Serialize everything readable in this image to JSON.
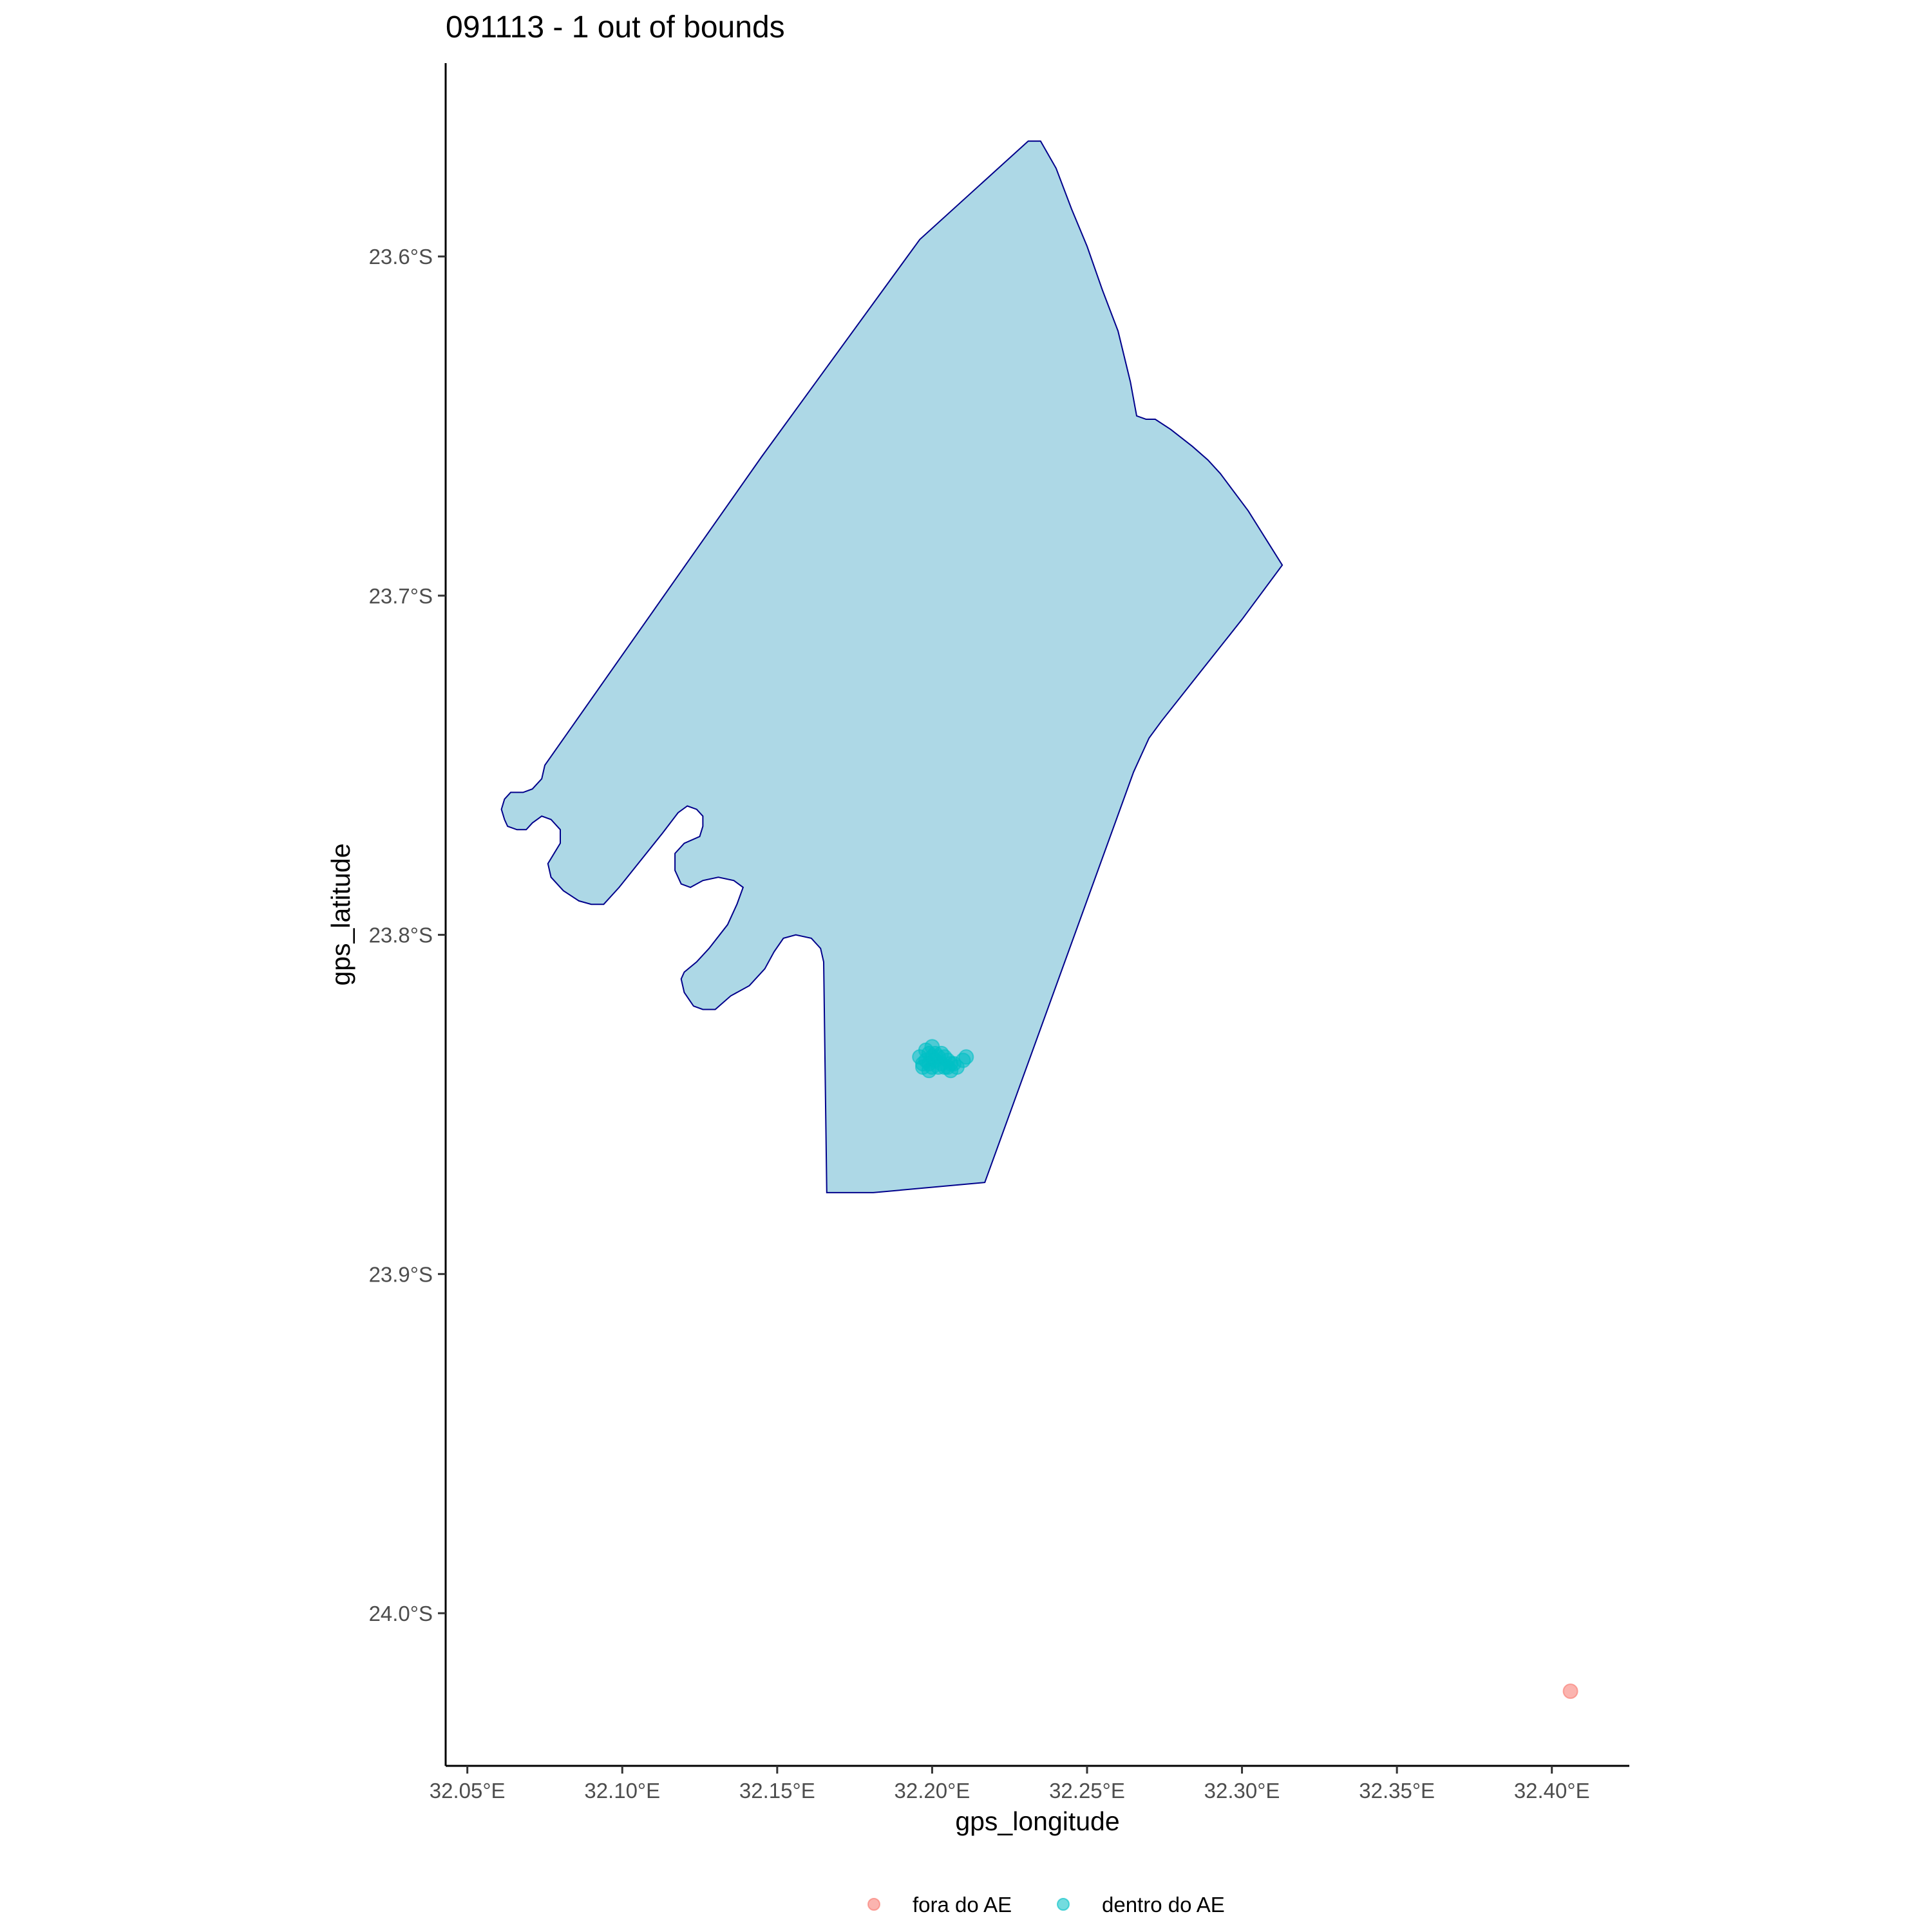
{
  "chart_data": {
    "type": "scatter",
    "title": "091113 - 1 out of bounds",
    "xlabel": "gps_longitude",
    "ylabel": "gps_latitude",
    "xlim": [
      32.043,
      32.425
    ],
    "ylim": [
      -24.045,
      -23.543
    ],
    "x_ticks": [
      {
        "value": 32.05,
        "label": "32.05°E"
      },
      {
        "value": 32.1,
        "label": "32.10°E"
      },
      {
        "value": 32.15,
        "label": "32.15°E"
      },
      {
        "value": 32.2,
        "label": "32.20°E"
      },
      {
        "value": 32.25,
        "label": "32.25°E"
      },
      {
        "value": 32.3,
        "label": "32.30°E"
      },
      {
        "value": 32.35,
        "label": "32.35°E"
      },
      {
        "value": 32.4,
        "label": "32.40°E"
      }
    ],
    "y_ticks": [
      {
        "value": -23.6,
        "label": "23.6°S"
      },
      {
        "value": -23.7,
        "label": "23.7°S"
      },
      {
        "value": -23.8,
        "label": "23.8°S"
      },
      {
        "value": -23.9,
        "label": "23.9°S"
      },
      {
        "value": -24.0,
        "label": "24.0°S"
      }
    ],
    "grid": false,
    "legend_position": "bottom",
    "colors": {
      "polygon_fill": "#add8e6",
      "polygon_stroke": "#00008b",
      "outside": "#f8766d",
      "inside": "#00bfc4"
    },
    "boundary_polygon": [
      [
        32.231,
        -23.566
      ],
      [
        32.235,
        -23.566
      ],
      [
        32.24,
        -23.574
      ],
      [
        32.245,
        -23.586
      ],
      [
        32.25,
        -23.597
      ],
      [
        32.255,
        -23.61
      ],
      [
        32.26,
        -23.622
      ],
      [
        32.264,
        -23.637
      ],
      [
        32.266,
        -23.647
      ],
      [
        32.269,
        -23.648
      ],
      [
        32.272,
        -23.648
      ],
      [
        32.277,
        -23.651
      ],
      [
        32.284,
        -23.656
      ],
      [
        32.289,
        -23.66
      ],
      [
        32.293,
        -23.664
      ],
      [
        32.302,
        -23.675
      ],
      [
        32.313,
        -23.691
      ],
      [
        32.3,
        -23.707
      ],
      [
        32.287,
        -23.722
      ],
      [
        32.274,
        -23.737
      ],
      [
        32.27,
        -23.742
      ],
      [
        32.265,
        -23.752
      ],
      [
        32.217,
        -23.873
      ],
      [
        32.181,
        -23.876
      ],
      [
        32.176,
        -23.876
      ],
      [
        32.171,
        -23.876
      ],
      [
        32.166,
        -23.876
      ],
      [
        32.165,
        -23.808
      ],
      [
        32.164,
        -23.804
      ],
      [
        32.161,
        -23.801
      ],
      [
        32.156,
        -23.8
      ],
      [
        32.152,
        -23.801
      ],
      [
        32.149,
        -23.805
      ],
      [
        32.146,
        -23.81
      ],
      [
        32.141,
        -23.815
      ],
      [
        32.135,
        -23.818
      ],
      [
        32.13,
        -23.822
      ],
      [
        32.126,
        -23.822
      ],
      [
        32.123,
        -23.821
      ],
      [
        32.12,
        -23.817
      ],
      [
        32.119,
        -23.813
      ],
      [
        32.12,
        -23.811
      ],
      [
        32.124,
        -23.808
      ],
      [
        32.128,
        -23.804
      ],
      [
        32.134,
        -23.797
      ],
      [
        32.137,
        -23.791
      ],
      [
        32.139,
        -23.786
      ],
      [
        32.136,
        -23.784
      ],
      [
        32.131,
        -23.783
      ],
      [
        32.126,
        -23.784
      ],
      [
        32.122,
        -23.786
      ],
      [
        32.119,
        -23.785
      ],
      [
        32.117,
        -23.781
      ],
      [
        32.117,
        -23.776
      ],
      [
        32.12,
        -23.773
      ],
      [
        32.125,
        -23.771
      ],
      [
        32.126,
        -23.768
      ],
      [
        32.126,
        -23.765
      ],
      [
        32.124,
        -23.763
      ],
      [
        32.121,
        -23.762
      ],
      [
        32.118,
        -23.764
      ],
      [
        32.113,
        -23.77
      ],
      [
        32.106,
        -23.778
      ],
      [
        32.099,
        -23.786
      ],
      [
        32.094,
        -23.791
      ],
      [
        32.09,
        -23.791
      ],
      [
        32.086,
        -23.79
      ],
      [
        32.081,
        -23.787
      ],
      [
        32.077,
        -23.783
      ],
      [
        32.076,
        -23.779
      ],
      [
        32.078,
        -23.776
      ],
      [
        32.08,
        -23.773
      ],
      [
        32.08,
        -23.769
      ],
      [
        32.077,
        -23.766
      ],
      [
        32.074,
        -23.765
      ],
      [
        32.071,
        -23.767
      ],
      [
        32.069,
        -23.769
      ],
      [
        32.066,
        -23.769
      ],
      [
        32.063,
        -23.768
      ],
      [
        32.062,
        -23.766
      ],
      [
        32.061,
        -23.763
      ],
      [
        32.062,
        -23.76
      ],
      [
        32.064,
        -23.758
      ],
      [
        32.068,
        -23.758
      ],
      [
        32.071,
        -23.757
      ],
      [
        32.074,
        -23.754
      ],
      [
        32.075,
        -23.75
      ],
      [
        32.145,
        -23.659
      ],
      [
        32.196,
        -23.595
      ],
      [
        32.231,
        -23.566
      ]
    ],
    "series": [
      {
        "name": "fora do AE",
        "points": [
          {
            "x": 32.406,
            "y": -24.023
          }
        ]
      },
      {
        "name": "dentro do AE",
        "points": [
          {
            "x": 32.196,
            "y": -23.836
          },
          {
            "x": 32.197,
            "y": -23.838
          },
          {
            "x": 32.198,
            "y": -23.834
          },
          {
            "x": 32.198,
            "y": -23.837
          },
          {
            "x": 32.199,
            "y": -23.835
          },
          {
            "x": 32.199,
            "y": -23.838
          },
          {
            "x": 32.2,
            "y": -23.833
          },
          {
            "x": 32.2,
            "y": -23.836
          },
          {
            "x": 32.2,
            "y": -23.839
          },
          {
            "x": 32.201,
            "y": -23.835
          },
          {
            "x": 32.201,
            "y": -23.837
          },
          {
            "x": 32.202,
            "y": -23.836
          },
          {
            "x": 32.202,
            "y": -23.839
          },
          {
            "x": 32.203,
            "y": -23.835
          },
          {
            "x": 32.203,
            "y": -23.838
          },
          {
            "x": 32.204,
            "y": -23.836
          },
          {
            "x": 32.204,
            "y": -23.839
          },
          {
            "x": 32.205,
            "y": -23.837
          },
          {
            "x": 32.205,
            "y": -23.839
          },
          {
            "x": 32.206,
            "y": -23.838
          },
          {
            "x": 32.206,
            "y": -23.84
          },
          {
            "x": 32.207,
            "y": -23.838
          },
          {
            "x": 32.208,
            "y": -23.839
          },
          {
            "x": 32.21,
            "y": -23.837
          },
          {
            "x": 32.211,
            "y": -23.836
          },
          {
            "x": 32.199,
            "y": -23.84
          },
          {
            "x": 32.197,
            "y": -23.839
          }
        ]
      }
    ]
  }
}
